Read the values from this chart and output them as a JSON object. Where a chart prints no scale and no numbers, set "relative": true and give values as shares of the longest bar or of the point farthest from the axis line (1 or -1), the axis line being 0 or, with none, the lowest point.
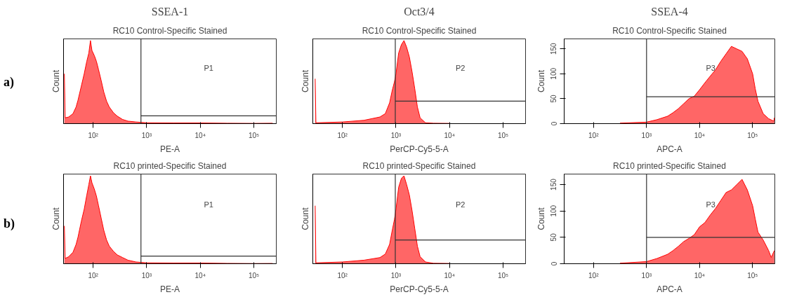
{
  "chart_data": [
    {
      "type": "area",
      "title": "SSEA-1",
      "subtitle": "RC10 Control-Specific Stained",
      "xlabel": "PE-A",
      "ylabel": "Count",
      "log": "x",
      "relative": true,
      "annotations": [
        "a)"
      ],
      "xlim": [
        28,
        262000
      ],
      "xticks": [
        {
          "value": 100,
          "label": "10²"
        },
        {
          "value": 1000,
          "label": "10³"
        },
        {
          "value": 10000,
          "label": "10⁴"
        },
        {
          "value": 100000,
          "label": "10⁵"
        }
      ],
      "ref_lines": [
        {
          "axis": "x",
          "value": 780,
          "color": "#333333",
          "label": "P1"
        }
      ],
      "series": [
        {
          "color": "#ff0000",
          "x": [
            29,
            30,
            35,
            42,
            48,
            52,
            60,
            68,
            76,
            83,
            89,
            95,
            105,
            115,
            126,
            141,
            158,
            178,
            200,
            240,
            282,
            355,
            447,
            631,
            1000,
            3160,
            10000,
            31600,
            100000,
            224000
          ],
          "values": [
            0.6,
            0.07,
            0.08,
            0.12,
            0.2,
            0.28,
            0.45,
            0.6,
            0.75,
            0.85,
            1,
            0.88,
            0.82,
            0.75,
            0.65,
            0.52,
            0.38,
            0.27,
            0.2,
            0.13,
            0.09,
            0.05,
            0.03,
            0.02,
            0.01,
            0.008,
            0.008,
            0.005,
            0.003,
            0.005
          ]
        },
        {
          "type": "line",
          "color": "#333333",
          "x": [
            780,
            262000
          ],
          "values": [
            0.094,
            0.094
          ]
        }
      ]
    },
    {
      "type": "area",
      "title": "Oct3/4",
      "subtitle": "RC10 Control-Specific Stained",
      "xlabel": "PerCP-Cy5-5-A",
      "ylabel": "Count",
      "log": "x",
      "relative": true,
      "xlim": [
        28,
        262000
      ],
      "xticks": [
        {
          "value": 100,
          "label": "10²"
        },
        {
          "value": 1000,
          "label": "10³"
        },
        {
          "value": 10000,
          "label": "10⁴"
        },
        {
          "value": 100000,
          "label": "10⁵"
        }
      ],
      "ref_lines": [
        {
          "axis": "x",
          "value": 970,
          "color": "#333333",
          "label": "P2"
        }
      ],
      "series": [
        {
          "color": "#ff0000",
          "x": [
            31,
            32,
            100,
            251,
            501,
            631,
            759,
            851,
            933,
            1000,
            1120,
            1260,
            1410,
            1580,
            1780,
            2000,
            2240,
            2510,
            2820,
            3550,
            5010,
            10000
          ],
          "values": [
            0.54,
            0.01,
            0.02,
            0.04,
            0.08,
            0.12,
            0.25,
            0.4,
            0.5,
            0.6,
            0.85,
            0.95,
            1,
            0.92,
            0.8,
            0.62,
            0.42,
            0.2,
            0.07,
            0.01,
            0.005,
            0.003
          ]
        },
        {
          "type": "line",
          "color": "#333333",
          "x": [
            970,
            262000
          ],
          "values": [
            0.27,
            0.27
          ]
        }
      ]
    },
    {
      "type": "area",
      "title": "SSEA-4",
      "subtitle": "RC10 Control-Specific Stained",
      "xlabel": "APC-A",
      "ylabel": "Count",
      "log": "x",
      "xlim": [
        28,
        262000
      ],
      "xticks": [
        {
          "value": 100,
          "label": "10²"
        },
        {
          "value": 1000,
          "label": "10³"
        },
        {
          "value": 10000,
          "label": "10⁴"
        },
        {
          "value": 100000,
          "label": "10⁵"
        }
      ],
      "ylim": [
        0,
        170
      ],
      "yticks": [
        0,
        50,
        100,
        150
      ],
      "ref_lines": [
        {
          "axis": "x",
          "value": 1000,
          "color": "#333333",
          "label": "P3"
        }
      ],
      "series": [
        {
          "color": "#ff0000",
          "x": [
            316,
            1000,
            1580,
            2510,
            3160,
            3980,
            5010,
            6310,
            7940,
            10000,
            12600,
            15800,
            20000,
            25100,
            31600,
            39800,
            50100,
            63100,
            79400,
            100000,
            112000,
            126000,
            158000,
            200000,
            251000,
            257000
          ],
          "values": [
            1,
            3,
            8,
            15,
            22,
            30,
            40,
            50,
            55,
            68,
            82,
            95,
            108,
            125,
            140,
            155,
            150,
            145,
            130,
            100,
            70,
            45,
            20,
            10,
            5,
            12
          ]
        },
        {
          "type": "line",
          "color": "#333333",
          "x": [
            1000,
            262000
          ],
          "values": [
            54,
            54
          ]
        }
      ]
    },
    {
      "type": "area",
      "subtitle": "RC10 printed-Specific Stained",
      "xlabel": "PE-A",
      "ylabel": "Count",
      "log": "x",
      "relative": true,
      "annotations": [
        "b)"
      ],
      "xlim": [
        28,
        262000
      ],
      "xticks": [
        {
          "value": 100,
          "label": "10²"
        },
        {
          "value": 1000,
          "label": "10³"
        },
        {
          "value": 10000,
          "label": "10⁴"
        },
        {
          "value": 100000,
          "label": "10⁵"
        }
      ],
      "ref_lines": [
        {
          "axis": "x",
          "value": 780,
          "color": "#333333",
          "label": "P1"
        }
      ],
      "series": [
        {
          "color": "#ff0000",
          "x": [
            29,
            30,
            35,
            42,
            48,
            52,
            60,
            68,
            76,
            83,
            89,
            95,
            105,
            115,
            126,
            141,
            158,
            178,
            200,
            240,
            282,
            355,
            447,
            631,
            1000,
            3160,
            10000,
            31600,
            100000,
            224000
          ],
          "values": [
            0.43,
            0.06,
            0.08,
            0.13,
            0.22,
            0.3,
            0.48,
            0.62,
            0.78,
            0.9,
            1,
            0.92,
            0.85,
            0.77,
            0.66,
            0.52,
            0.38,
            0.27,
            0.2,
            0.14,
            0.1,
            0.07,
            0.04,
            0.02,
            0.01,
            0.008,
            0.008,
            0.004,
            0.002,
            0.003
          ]
        },
        {
          "type": "line",
          "color": "#333333",
          "x": [
            780,
            262000
          ],
          "values": [
            0.087,
            0.087
          ]
        }
      ]
    },
    {
      "type": "area",
      "subtitle": "RC10 printed-Specific Stained",
      "xlabel": "PerCP-Cy5-5-A",
      "ylabel": "Count",
      "log": "x",
      "relative": true,
      "xlim": [
        28,
        262000
      ],
      "xticks": [
        {
          "value": 100,
          "label": "10²"
        },
        {
          "value": 1000,
          "label": "10³"
        },
        {
          "value": 10000,
          "label": "10⁴"
        },
        {
          "value": 100000,
          "label": "10⁵"
        }
      ],
      "ref_lines": [
        {
          "axis": "x",
          "value": 970,
          "color": "#333333",
          "label": "P2"
        }
      ],
      "series": [
        {
          "color": "#ff0000",
          "x": [
            31,
            32,
            100,
            251,
            501,
            631,
            759,
            851,
            933,
            1000,
            1120,
            1260,
            1410,
            1580,
            1780,
            2000,
            2240,
            2510,
            2820,
            3550,
            5010,
            10000
          ],
          "values": [
            0.66,
            0.01,
            0.02,
            0.04,
            0.07,
            0.11,
            0.22,
            0.38,
            0.5,
            0.62,
            0.87,
            0.97,
            1,
            0.9,
            0.78,
            0.6,
            0.4,
            0.2,
            0.08,
            0.02,
            0.005,
            0.003
          ]
        },
        {
          "type": "line",
          "color": "#333333",
          "x": [
            970,
            262000
          ],
          "values": [
            0.27,
            0.27
          ]
        }
      ]
    },
    {
      "type": "area",
      "subtitle": "RC10 printed-Specific Stained",
      "xlabel": "APC-A",
      "ylabel": "Count",
      "log": "x",
      "xlim": [
        28,
        262000
      ],
      "xticks": [
        {
          "value": 100,
          "label": "10²"
        },
        {
          "value": 1000,
          "label": "10³"
        },
        {
          "value": 10000,
          "label": "10⁴"
        },
        {
          "value": 100000,
          "label": "10⁵"
        }
      ],
      "ylim": [
        0,
        170
      ],
      "yticks": [
        0,
        50,
        100,
        150
      ],
      "ref_lines": [
        {
          "axis": "x",
          "value": 1000,
          "color": "#333333",
          "label": "P3"
        }
      ],
      "series": [
        {
          "color": "#ff0000",
          "x": [
            316,
            1000,
            1580,
            2510,
            3160,
            3980,
            5010,
            6310,
            7940,
            10000,
            12600,
            15800,
            20000,
            25100,
            31600,
            39800,
            50100,
            63100,
            79400,
            100000,
            112000,
            126000,
            158000,
            200000,
            224000,
            257000
          ],
          "values": [
            1,
            4,
            10,
            18,
            25,
            33,
            42,
            48,
            55,
            70,
            78,
            92,
            105,
            120,
            135,
            140,
            150,
            160,
            140,
            110,
            85,
            60,
            45,
            25,
            12,
            25
          ]
        },
        {
          "type": "line",
          "color": "#333333",
          "x": [
            1000,
            262000
          ],
          "values": [
            50,
            50
          ]
        }
      ]
    }
  ]
}
